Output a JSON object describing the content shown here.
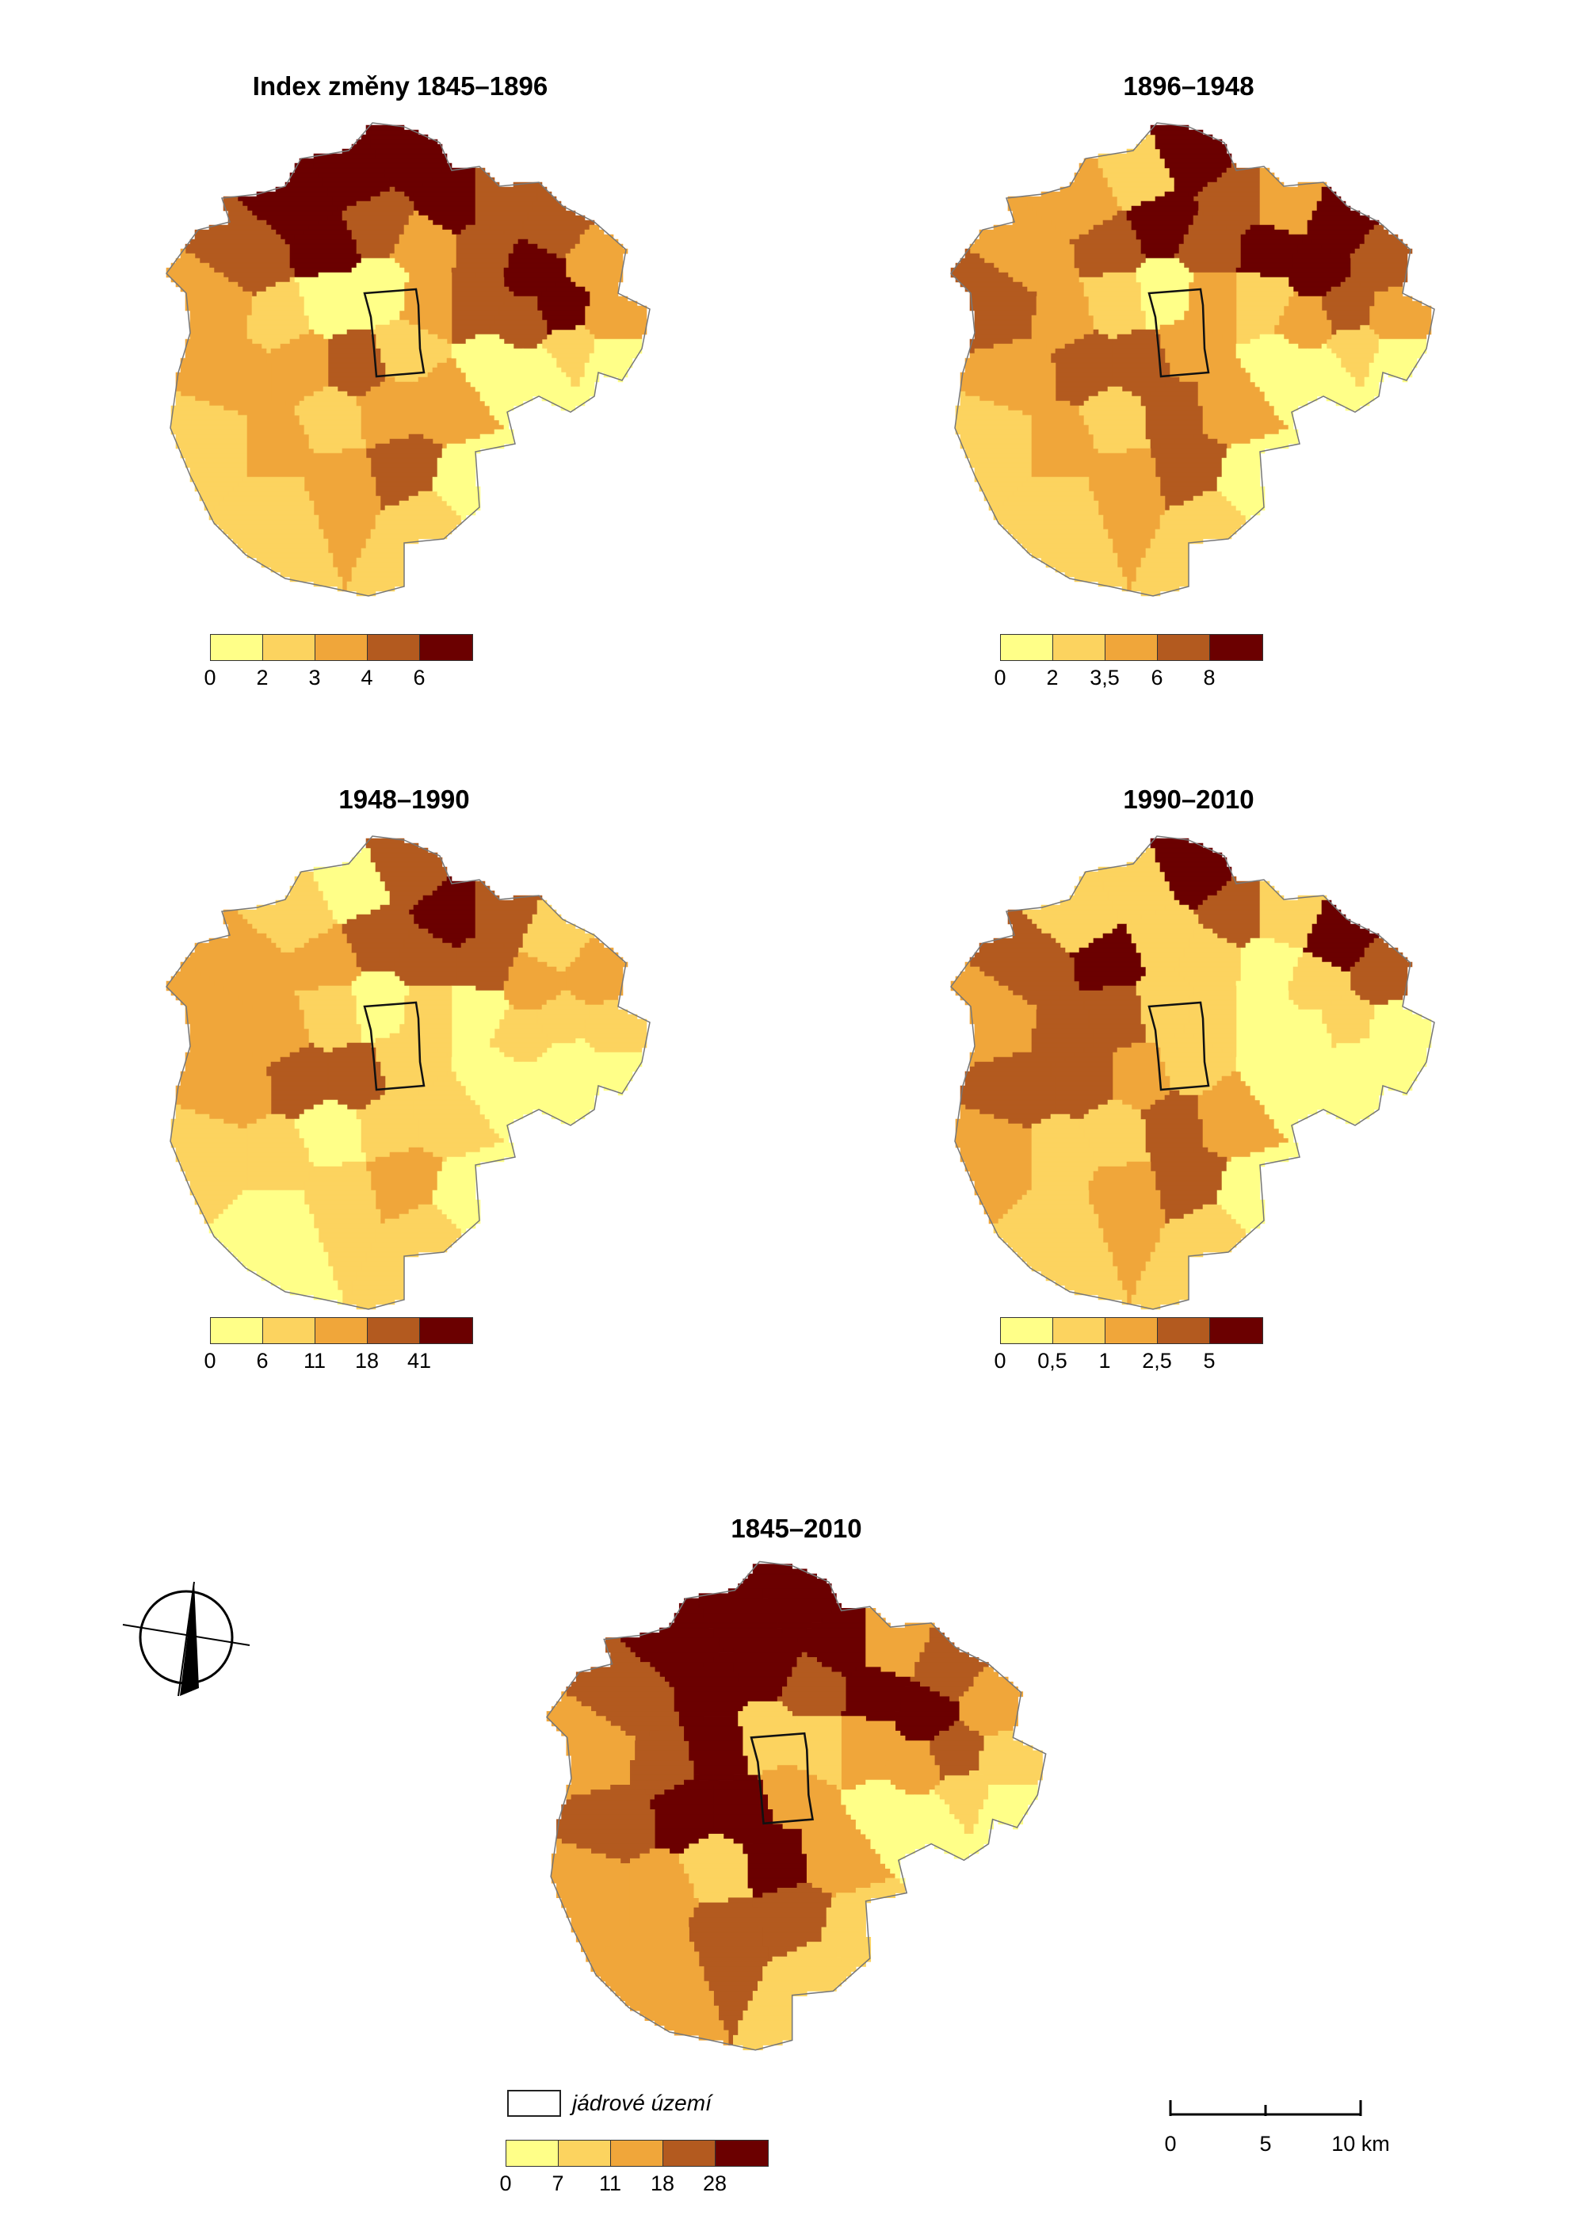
{
  "palettes": {
    "five": [
      "#ffff88",
      "#fcd35f",
      "#f0a63a",
      "#b35a1f",
      "#6b0000"
    ]
  },
  "panels": [
    {
      "id": "p1",
      "title": "Index změny 1845–1896",
      "ticks": [
        "0",
        "2",
        "3",
        "4",
        "6"
      ],
      "fills": [
        4,
        4,
        4,
        4,
        3,
        3,
        2,
        2,
        1,
        0,
        3,
        4,
        3,
        2,
        3,
        4,
        4,
        3,
        3,
        2,
        2,
        1,
        0,
        0,
        1,
        3,
        2,
        2,
        1,
        2,
        1,
        2,
        2,
        3,
        2,
        1,
        1,
        0,
        0,
        0
      ]
    },
    {
      "id": "p2",
      "title": "1896–1948",
      "ticks": [
        "0",
        "2",
        "3,5",
        "6",
        "8"
      ],
      "fills": [
        2,
        1,
        4,
        3,
        2,
        4,
        3,
        2,
        1,
        0,
        2,
        3,
        4,
        3,
        4,
        4,
        3,
        2,
        1,
        2,
        3,
        2,
        1,
        0,
        2,
        3,
        3,
        2,
        1,
        2,
        1,
        3,
        2,
        3,
        2,
        1,
        1,
        0,
        0,
        0
      ]
    },
    {
      "id": "p3",
      "title": "1948–1990",
      "ticks": [
        "0",
        "6",
        "11",
        "18",
        "41"
      ],
      "fills": [
        1,
        0,
        3,
        4,
        3,
        1,
        2,
        1,
        0,
        0,
        2,
        2,
        3,
        3,
        3,
        2,
        1,
        1,
        0,
        1,
        2,
        2,
        1,
        0,
        1,
        3,
        3,
        2,
        1,
        1,
        0,
        1,
        1,
        2,
        1,
        0,
        1,
        0,
        0,
        0
      ]
    },
    {
      "id": "p4",
      "title": "1990–2010",
      "ticks": [
        "0",
        "0,5",
        "1",
        "2,5",
        "5"
      ],
      "fills": [
        1,
        1,
        4,
        3,
        1,
        4,
        3,
        0,
        0,
        0,
        3,
        4,
        1,
        1,
        0,
        1,
        1,
        0,
        0,
        1,
        2,
        3,
        3,
        1,
        1,
        2,
        3,
        3,
        2,
        1,
        1,
        3,
        2,
        3,
        2,
        1,
        1,
        0,
        0,
        0
      ]
    },
    {
      "id": "p5",
      "title": "1845–2010",
      "ticks": [
        "0",
        "7",
        "11",
        "18",
        "28"
      ],
      "fills": [
        4,
        4,
        4,
        4,
        2,
        3,
        2,
        1,
        1,
        0,
        3,
        4,
        4,
        3,
        4,
        4,
        3,
        2,
        2,
        1,
        2,
        3,
        4,
        1,
        2,
        4,
        4,
        3,
        2,
        2,
        1,
        4,
        2,
        3,
        3,
        2,
        1,
        1,
        0,
        0
      ]
    }
  ],
  "legend_core": {
    "label": "jádrové území"
  },
  "scale": {
    "ticks": [
      "0",
      "5",
      "10 km"
    ]
  },
  "compass": {
    "name": "north-arrow"
  }
}
